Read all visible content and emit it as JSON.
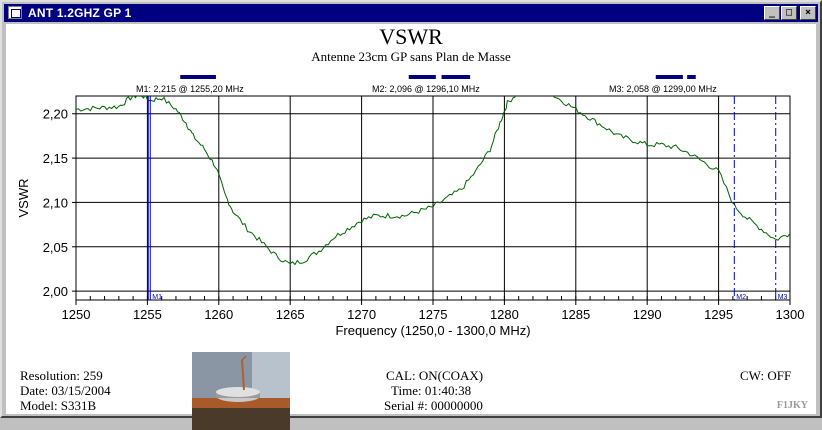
{
  "window": {
    "title": "ANT 1.2GHZ GP 1",
    "controls": [
      "_",
      "□",
      "×"
    ]
  },
  "header": {
    "title": "VSWR",
    "subtitle": "Antenne 23cm GP sans Plan de Masse"
  },
  "markers": [
    {
      "name": "M1",
      "label": "M1: 2,215  @ 1255,20 MHz",
      "freq": 1255.2,
      "vswr": 2.215,
      "line_style": "solid"
    },
    {
      "name": "M2",
      "label": "M2: 2,096  @ 1296,10 MHz",
      "freq": 1296.1,
      "vswr": 2.096,
      "line_style": "dashed"
    },
    {
      "name": "M3",
      "label": "M3: 2,058  @ 1299,00 MHz",
      "freq": 1299.0,
      "vswr": 2.058,
      "line_style": "dashed"
    }
  ],
  "marker_bars": [
    {
      "from": 1257.3,
      "to": 1259.8
    },
    {
      "from": 1273.3,
      "to": 1275.2
    },
    {
      "from": 1275.6,
      "to": 1277.6
    },
    {
      "from": 1290.6,
      "to": 1292.5
    },
    {
      "from": 1292.8,
      "to": 1293.4
    }
  ],
  "chart_data": {
    "type": "line",
    "title": "VSWR",
    "subtitle": "Antenne 23cm GP sans Plan de Masse",
    "xlabel": "Frequency (1250,0 - 1300,0 MHz)",
    "ylabel": "VSWR",
    "xlim": [
      1250,
      1300
    ],
    "ylim": [
      1.99,
      2.22
    ],
    "x_ticks": [
      "1250",
      "1255",
      "1260",
      "1265",
      "1270",
      "1275",
      "1280",
      "1285",
      "1290",
      "1295",
      "1300"
    ],
    "y_ticks": [
      "2,00",
      "2,05",
      "2,10",
      "2,15",
      "2,20"
    ],
    "grid": true,
    "color": "#006400",
    "series": [
      {
        "x": [
          1250,
          1251,
          1252,
          1253,
          1253.8,
          1254.5,
          1255.2,
          1256,
          1257,
          1257.7,
          1258.2,
          1259,
          1259.8,
          1260.4,
          1261,
          1262,
          1263,
          1264,
          1265,
          1266,
          1267,
          1268,
          1269,
          1270,
          1271,
          1272,
          1273,
          1274,
          1275,
          1276,
          1277,
          1278,
          1279,
          1279.7,
          1280.2,
          1281,
          1282,
          1283,
          1284,
          1285,
          1286,
          1287,
          1288,
          1289,
          1290,
          1291,
          1292,
          1293,
          1294,
          1295,
          1296.1,
          1297,
          1298,
          1299,
          1300
        ],
        "y": [
          2.205,
          2.206,
          2.207,
          2.208,
          2.218,
          2.222,
          2.215,
          2.218,
          2.205,
          2.19,
          2.175,
          2.16,
          2.14,
          2.11,
          2.09,
          2.07,
          2.055,
          2.04,
          2.03,
          2.035,
          2.045,
          2.06,
          2.07,
          2.08,
          2.085,
          2.085,
          2.085,
          2.09,
          2.095,
          2.105,
          2.115,
          2.135,
          2.16,
          2.19,
          2.212,
          2.225,
          2.226,
          2.225,
          2.215,
          2.205,
          2.195,
          2.185,
          2.175,
          2.17,
          2.165,
          2.165,
          2.162,
          2.155,
          2.145,
          2.135,
          2.096,
          2.082,
          2.07,
          2.058,
          2.065
        ]
      }
    ]
  },
  "footer": {
    "resolution_label": "Resolution:  259",
    "date_label": "Date: 03/15/2004",
    "model_label": "Model:  S331B",
    "cal_label": "CAL: ON(COAX)",
    "time_label": "Time: 01:40:38",
    "serial_label": "Serial #:  00000000",
    "cw_label": "CW: OFF",
    "credit": "F1JKY"
  },
  "colors": {
    "trace": "#006400",
    "marker": "#0000cc",
    "marker_bar": "#000080",
    "titlebar": "#000080"
  }
}
